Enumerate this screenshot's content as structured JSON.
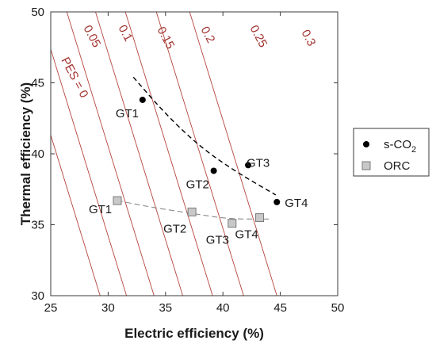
{
  "chart_data": {
    "type": "scatter",
    "xlabel": "Electric efficiency (%)",
    "ylabel": "Thermal efficiency (%)",
    "xlim": [
      25,
      50
    ],
    "ylim": [
      30,
      50
    ],
    "xticks": [
      "25",
      "30",
      "35",
      "40",
      "45",
      "50"
    ],
    "yticks": [
      "30",
      "35",
      "40",
      "45",
      "50"
    ],
    "grid": false,
    "legend_position": "right",
    "pes_lines": [
      {
        "label": "PES = 0",
        "value": 0
      },
      {
        "label": "0.05",
        "value": 0.05
      },
      {
        "label": "0.1",
        "value": 0.1
      },
      {
        "label": "0.15",
        "value": 0.15
      },
      {
        "label": "0.2",
        "value": 0.2
      },
      {
        "label": "0.25",
        "value": 0.25
      },
      {
        "label": "0.3",
        "value": 0.3
      }
    ],
    "series": [
      {
        "name": "s-CO2",
        "name_main": "s-CO",
        "name_sub": "2",
        "marker": "circle",
        "color": "#000000",
        "points": [
          {
            "label": "GT1",
            "x": 33.0,
            "y": 43.8
          },
          {
            "label": "GT2",
            "x": 39.2,
            "y": 38.8
          },
          {
            "label": "GT3",
            "x": 42.2,
            "y": 39.2
          },
          {
            "label": "GT4",
            "x": 44.7,
            "y": 36.6
          }
        ],
        "trend": [
          [
            32.2,
            45.4
          ],
          [
            35.0,
            42.8
          ],
          [
            38.0,
            40.5
          ],
          [
            41.0,
            38.8
          ],
          [
            44.6,
            37.1
          ]
        ]
      },
      {
        "name": "ORC",
        "marker": "square",
        "color": "#c8c8c8",
        "points": [
          {
            "label": "GT1",
            "x": 30.8,
            "y": 36.7
          },
          {
            "label": "GT2",
            "x": 37.3,
            "y": 35.9
          },
          {
            "label": "GT3",
            "x": 40.8,
            "y": 35.1
          },
          {
            "label": "GT4",
            "x": 43.2,
            "y": 35.5
          }
        ],
        "trend": [
          [
            30.8,
            36.7
          ],
          [
            34.0,
            36.2
          ],
          [
            37.3,
            35.8
          ],
          [
            40.5,
            35.4
          ],
          [
            44.0,
            35.4
          ]
        ]
      }
    ]
  },
  "colors": {
    "pes_line": "#b5453f",
    "axis": "#3a3a3a",
    "trend": "#000000",
    "trend_orc": "#8a8a8a"
  }
}
